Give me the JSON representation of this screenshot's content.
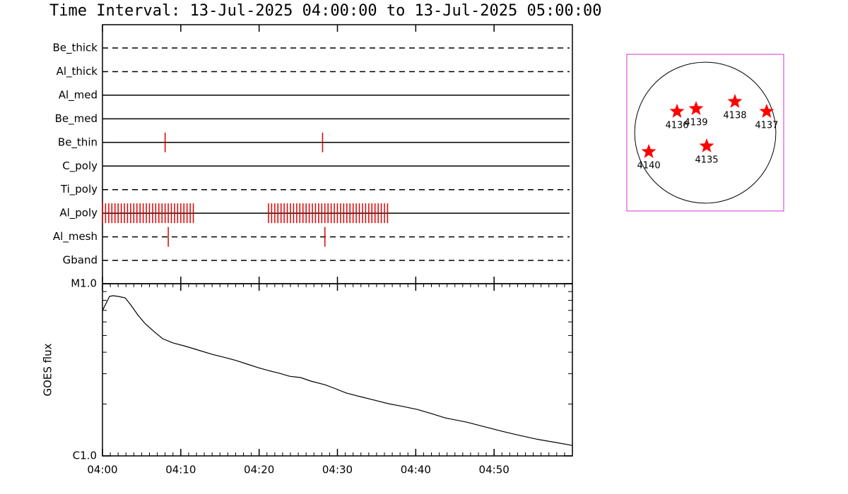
{
  "chart_data": [
    {
      "type": "timeline",
      "title": "Time Interval: 13-Jul-2025 04:00:00 to 13-Jul-2025 05:00:00",
      "xlim": [
        0,
        60
      ],
      "event_color": "#dd0000",
      "series": [
        {
          "name": "Be_thick",
          "dashed": true,
          "events": []
        },
        {
          "name": "Al_thick",
          "dashed": true,
          "events": []
        },
        {
          "name": "Al_med",
          "dashed": false,
          "events": []
        },
        {
          "name": "Be_med",
          "dashed": false,
          "events": []
        },
        {
          "name": "Be_thin",
          "dashed": false,
          "events": [
            8.0,
            28.1
          ]
        },
        {
          "name": "C_poly",
          "dashed": false,
          "events": []
        },
        {
          "name": "Ti_poly",
          "dashed": true,
          "events": []
        },
        {
          "name": "Al_poly",
          "dashed": false,
          "events": [
            0,
            0.4,
            0.8,
            1.2,
            1.6,
            2,
            2.4,
            2.8,
            3.2,
            3.6,
            4,
            4.4,
            4.8,
            5.2,
            5.6,
            6,
            6.4,
            6.8,
            7.2,
            7.6,
            8,
            8.4,
            8.8,
            9.2,
            9.6,
            10,
            10.4,
            10.8,
            11.2,
            11.6,
            21.2,
            21.6,
            22,
            22.4,
            22.8,
            23.2,
            23.6,
            24,
            24.4,
            24.8,
            25.2,
            25.6,
            26,
            26.4,
            26.8,
            27.2,
            27.6,
            28,
            28.4,
            28.8,
            29.2,
            29.6,
            30,
            30.4,
            30.8,
            31.2,
            31.6,
            32,
            32.4,
            32.8,
            33.2,
            33.6,
            34,
            34.4,
            34.8,
            35.2,
            35.6,
            36,
            36.4
          ]
        },
        {
          "name": "Al_mesh",
          "dashed": true,
          "events": [
            8.4,
            28.4
          ]
        },
        {
          "name": "Gband",
          "dashed": true,
          "events": []
        }
      ]
    },
    {
      "type": "line",
      "ylabel": "GOES flux",
      "log_y": true,
      "color": "#000000",
      "xlim": [
        0,
        60
      ],
      "xticks": [
        {
          "value": 0,
          "label": "04:00"
        },
        {
          "value": 10,
          "label": "04:10"
        },
        {
          "value": 20,
          "label": "04:20"
        },
        {
          "value": 30,
          "label": "04:30"
        },
        {
          "value": 40,
          "label": "04:40"
        },
        {
          "value": 50,
          "label": "04:50"
        }
      ],
      "ylim": [
        1e-06,
        1e-05
      ],
      "yticks": [
        {
          "value": 1e-06,
          "label": "C1.0"
        },
        {
          "value": 1e-05,
          "label": "M1.0"
        }
      ],
      "x": [
        0,
        0.45,
        0.9,
        1.35,
        2.0,
        2.9,
        3.6,
        4.5,
        5.4,
        6.6,
        7.7,
        9.0,
        10.4,
        12.2,
        14.0,
        15.8,
        17.1,
        18.5,
        19.9,
        21.2,
        22.6,
        23.9,
        25.3,
        26.6,
        28.4,
        29.8,
        31.1,
        32.9,
        34.7,
        36.5,
        38.3,
        40.2,
        42.0,
        43.8,
        46.5,
        49.2,
        51.0,
        52.8,
        55.5,
        58.2,
        60
      ],
      "values": [
        6.98e-06,
        7.68e-06,
        8.44e-06,
        8.52e-06,
        8.44e-06,
        8.28e-06,
        7.54e-06,
        6.6e-06,
        5.89e-06,
        5.26e-06,
        4.79e-06,
        4.53e-06,
        4.36e-06,
        4.12e-06,
        3.89e-06,
        3.71e-06,
        3.58e-06,
        3.41e-06,
        3.25e-06,
        3.13e-06,
        3.02e-06,
        2.9e-06,
        2.85e-06,
        2.72e-06,
        2.59e-06,
        2.45e-06,
        2.32e-06,
        2.21e-06,
        2.11e-06,
        2.01e-06,
        1.94e-06,
        1.86e-06,
        1.76e-06,
        1.66e-06,
        1.57e-06,
        1.46e-06,
        1.39e-06,
        1.33e-06,
        1.25e-06,
        1.19e-06,
        1.15e-06
      ]
    },
    {
      "type": "scatter",
      "color": "#ff0000",
      "frame_color": "#cc33cc",
      "xlim": [
        -1050,
        1050
      ],
      "ylim": [
        -1050,
        1050
      ],
      "disk_radius": 945,
      "labels": [
        "4135",
        "4136",
        "4137",
        "4138",
        "4139",
        "4140"
      ],
      "x": [
        19,
        -378,
        822,
        397,
        -123,
        -756
      ],
      "y": [
        -180,
        284,
        284,
        416,
        321,
        -255
      ]
    }
  ]
}
